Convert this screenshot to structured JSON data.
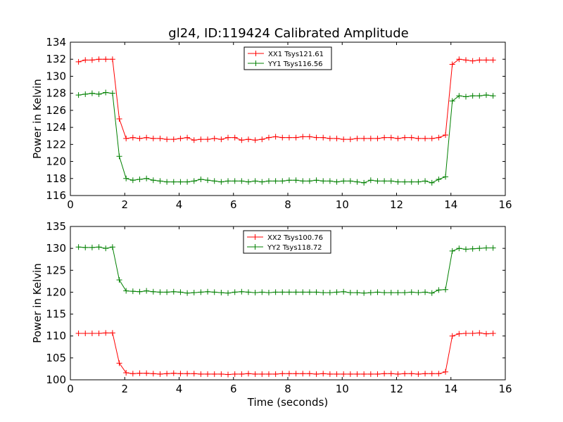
{
  "title": "gl24, ID:119424 Calibrated Amplitude",
  "chart_data": [
    {
      "type": "line",
      "ylabel": "Power in Kelvin",
      "xlabel": "",
      "xlim": [
        0,
        16
      ],
      "ylim": [
        116,
        134
      ],
      "xticks": [
        "0",
        "2",
        "4",
        "6",
        "8",
        "10",
        "12",
        "14",
        "16"
      ],
      "yticks": [
        "116",
        "118",
        "120",
        "122",
        "124",
        "126",
        "128",
        "130",
        "132",
        "134"
      ],
      "legend_position": "top-center",
      "x": [
        0.3,
        0.55,
        0.8,
        1.05,
        1.3,
        1.55,
        1.8,
        2.05,
        2.3,
        2.55,
        2.8,
        3.05,
        3.3,
        3.55,
        3.8,
        4.05,
        4.3,
        4.55,
        4.8,
        5.05,
        5.3,
        5.55,
        5.8,
        6.05,
        6.3,
        6.55,
        6.8,
        7.05,
        7.3,
        7.55,
        7.8,
        8.05,
        8.3,
        8.55,
        8.8,
        9.05,
        9.3,
        9.55,
        9.8,
        10.05,
        10.3,
        10.55,
        10.8,
        11.05,
        11.3,
        11.55,
        11.8,
        12.05,
        12.3,
        12.55,
        12.8,
        13.05,
        13.3,
        13.55,
        13.8,
        14.05,
        14.3,
        14.55,
        14.8,
        15.05,
        15.3,
        15.55
      ],
      "series": [
        {
          "name": "XX1 Tsys121.61",
          "color": "#ff0000",
          "values": [
            131.7,
            131.9,
            131.9,
            132.0,
            132.0,
            132.0,
            125.0,
            122.7,
            122.8,
            122.7,
            122.8,
            122.7,
            122.7,
            122.6,
            122.6,
            122.7,
            122.8,
            122.5,
            122.6,
            122.6,
            122.7,
            122.6,
            122.8,
            122.8,
            122.5,
            122.6,
            122.5,
            122.6,
            122.8,
            122.9,
            122.8,
            122.8,
            122.8,
            122.9,
            122.9,
            122.8,
            122.8,
            122.7,
            122.7,
            122.6,
            122.6,
            122.7,
            122.7,
            122.7,
            122.7,
            122.8,
            122.8,
            122.7,
            122.8,
            122.8,
            122.7,
            122.7,
            122.7,
            122.8,
            123.1,
            131.4,
            132.0,
            131.9,
            131.8,
            131.9,
            131.9,
            131.9
          ]
        },
        {
          "name": "YY1 Tsys116.56",
          "color": "#008000",
          "values": [
            127.8,
            127.9,
            128.0,
            127.9,
            128.1,
            128.0,
            120.6,
            118.0,
            117.8,
            117.9,
            118.0,
            117.8,
            117.7,
            117.6,
            117.6,
            117.6,
            117.6,
            117.7,
            117.9,
            117.8,
            117.7,
            117.6,
            117.7,
            117.7,
            117.7,
            117.6,
            117.7,
            117.6,
            117.7,
            117.7,
            117.7,
            117.8,
            117.8,
            117.7,
            117.7,
            117.8,
            117.7,
            117.7,
            117.6,
            117.7,
            117.7,
            117.6,
            117.5,
            117.8,
            117.7,
            117.7,
            117.7,
            117.6,
            117.6,
            117.6,
            117.6,
            117.7,
            117.5,
            117.9,
            118.2,
            127.1,
            127.7,
            127.6,
            127.7,
            127.7,
            127.8,
            127.7
          ]
        }
      ]
    },
    {
      "type": "line",
      "ylabel": "Power in Kelvin",
      "xlabel": "Time (seconds)",
      "xlim": [
        0,
        16
      ],
      "ylim": [
        100,
        135
      ],
      "xticks": [
        "0",
        "2",
        "4",
        "6",
        "8",
        "10",
        "12",
        "14",
        "16"
      ],
      "yticks": [
        "100",
        "105",
        "110",
        "115",
        "120",
        "125",
        "130",
        "135"
      ],
      "legend_position": "top-center",
      "x": [
        0.3,
        0.55,
        0.8,
        1.05,
        1.3,
        1.55,
        1.8,
        2.05,
        2.3,
        2.55,
        2.8,
        3.05,
        3.3,
        3.55,
        3.8,
        4.05,
        4.3,
        4.55,
        4.8,
        5.05,
        5.3,
        5.55,
        5.8,
        6.05,
        6.3,
        6.55,
        6.8,
        7.05,
        7.3,
        7.55,
        7.8,
        8.05,
        8.3,
        8.55,
        8.8,
        9.05,
        9.3,
        9.55,
        9.8,
        10.05,
        10.3,
        10.55,
        10.8,
        11.05,
        11.3,
        11.55,
        11.8,
        12.05,
        12.3,
        12.55,
        12.8,
        13.05,
        13.3,
        13.55,
        13.8,
        14.05,
        14.3,
        14.55,
        14.8,
        15.05,
        15.3,
        15.55
      ],
      "series": [
        {
          "name": "XX2 Tsys100.76",
          "color": "#ff0000",
          "values": [
            110.6,
            110.6,
            110.6,
            110.6,
            110.7,
            110.7,
            103.8,
            101.6,
            101.4,
            101.5,
            101.5,
            101.4,
            101.3,
            101.4,
            101.5,
            101.4,
            101.4,
            101.4,
            101.3,
            101.3,
            101.3,
            101.3,
            101.2,
            101.3,
            101.3,
            101.4,
            101.3,
            101.3,
            101.3,
            101.3,
            101.4,
            101.4,
            101.4,
            101.4,
            101.4,
            101.3,
            101.4,
            101.3,
            101.3,
            101.3,
            101.3,
            101.3,
            101.3,
            101.3,
            101.3,
            101.4,
            101.4,
            101.3,
            101.4,
            101.4,
            101.3,
            101.4,
            101.4,
            101.4,
            101.8,
            110.0,
            110.5,
            110.6,
            110.6,
            110.7,
            110.5,
            110.6
          ]
        },
        {
          "name": "YY2 Tsys118.72",
          "color": "#008000",
          "values": [
            130.3,
            130.2,
            130.2,
            130.3,
            130.0,
            130.3,
            122.8,
            120.3,
            120.2,
            120.1,
            120.3,
            120.1,
            120.0,
            120.0,
            120.1,
            120.0,
            119.8,
            119.9,
            120.0,
            120.1,
            120.0,
            119.9,
            119.8,
            120.0,
            120.1,
            120.0,
            119.9,
            120.0,
            119.9,
            120.0,
            120.0,
            120.0,
            120.0,
            120.0,
            120.0,
            120.0,
            119.9,
            119.9,
            120.0,
            120.1,
            119.9,
            119.9,
            119.8,
            119.9,
            120.0,
            119.9,
            119.9,
            119.9,
            119.9,
            120.0,
            119.9,
            120.0,
            119.8,
            120.5,
            120.6,
            129.4,
            130.0,
            129.8,
            129.9,
            130.0,
            130.1,
            130.1
          ]
        }
      ]
    }
  ]
}
